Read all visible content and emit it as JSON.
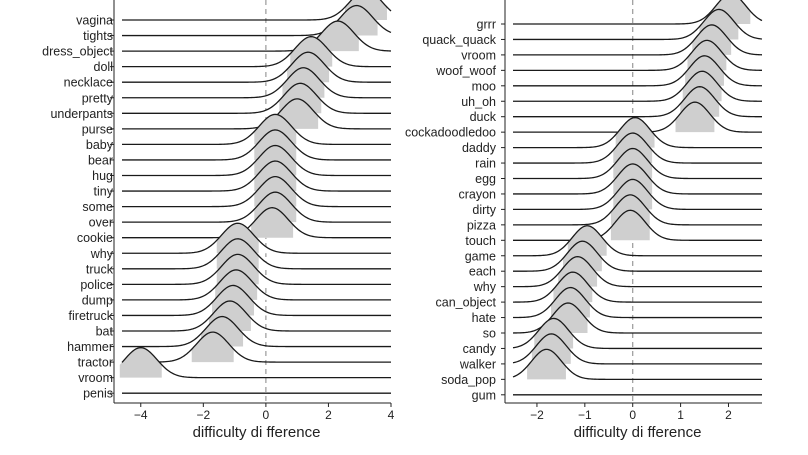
{
  "chart_data": [
    {
      "type": "ridgeline",
      "xlabel": "difficulty di fference",
      "xlim": [
        -4.6,
        4
      ],
      "xticks": [
        -4,
        -2,
        0,
        2,
        4
      ],
      "reference_line": 0,
      "rows": [
        {
          "label": "vagina",
          "peak": 3.2
        },
        {
          "label": "tights",
          "peak": 2.9
        },
        {
          "label": "dress_object",
          "peak": 2.3
        },
        {
          "label": "doll",
          "peak": 1.45
        },
        {
          "label": "necklace",
          "peak": 1.35
        },
        {
          "label": "pretty",
          "peak": 1.2
        },
        {
          "label": "underpants",
          "peak": 1.1
        },
        {
          "label": "purse",
          "peak": 1.0
        },
        {
          "label": "baby",
          "peak": 0.3
        },
        {
          "label": "bear",
          "peak": 0.3
        },
        {
          "label": "hug",
          "peak": 0.3
        },
        {
          "label": "tiny",
          "peak": 0.3
        },
        {
          "label": "some",
          "peak": 0.3
        },
        {
          "label": "over",
          "peak": 0.3
        },
        {
          "label": "cookie",
          "peak": 0.2
        },
        {
          "label": "why",
          "peak": -0.9
        },
        {
          "label": "truck",
          "peak": -0.9
        },
        {
          "label": "police",
          "peak": -0.9
        },
        {
          "label": "dump",
          "peak": -0.95
        },
        {
          "label": "firetruck",
          "peak": -1.05
        },
        {
          "label": "bat",
          "peak": -1.15
        },
        {
          "label": "hammer",
          "peak": -1.4
        },
        {
          "label": "tractor",
          "peak": -1.7
        },
        {
          "label": "vroom",
          "peak": -4.0
        },
        {
          "label": "penis",
          "peak": null
        }
      ]
    },
    {
      "type": "ridgeline",
      "xlabel": "difficulty di fference",
      "xlim": [
        -2.5,
        2.7
      ],
      "xticks": [
        -2,
        -1,
        0,
        1,
        2
      ],
      "reference_line": 0,
      "rows": [
        {
          "label": "grrr",
          "peak": 2.05
        },
        {
          "label": "quack_quack",
          "peak": 1.8
        },
        {
          "label": "vroom",
          "peak": 1.65
        },
        {
          "label": "woof_woof",
          "peak": 1.55
        },
        {
          "label": "moo",
          "peak": 1.5
        },
        {
          "label": "uh_oh",
          "peak": 1.45
        },
        {
          "label": "duck",
          "peak": 1.4
        },
        {
          "label": "cockadoodledoo",
          "peak": 1.3
        },
        {
          "label": "daddy",
          "peak": 0.05
        },
        {
          "label": "rain",
          "peak": 0.0
        },
        {
          "label": "egg",
          "peak": 0.0
        },
        {
          "label": "crayon",
          "peak": 0.0
        },
        {
          "label": "dirty",
          "peak": 0.0
        },
        {
          "label": "pizza",
          "peak": -0.05
        },
        {
          "label": "touch",
          "peak": -0.05
        },
        {
          "label": "game",
          "peak": -0.95
        },
        {
          "label": "each",
          "peak": -1.05
        },
        {
          "label": "why",
          "peak": -1.15
        },
        {
          "label": "can_object",
          "peak": -1.25
        },
        {
          "label": "hate",
          "peak": -1.3
        },
        {
          "label": "so",
          "peak": -1.35
        },
        {
          "label": "candy",
          "peak": -1.65
        },
        {
          "label": "walker",
          "peak": -1.7
        },
        {
          "label": "soda_pop",
          "peak": -1.8
        },
        {
          "label": "gum",
          "peak": null
        }
      ]
    }
  ]
}
